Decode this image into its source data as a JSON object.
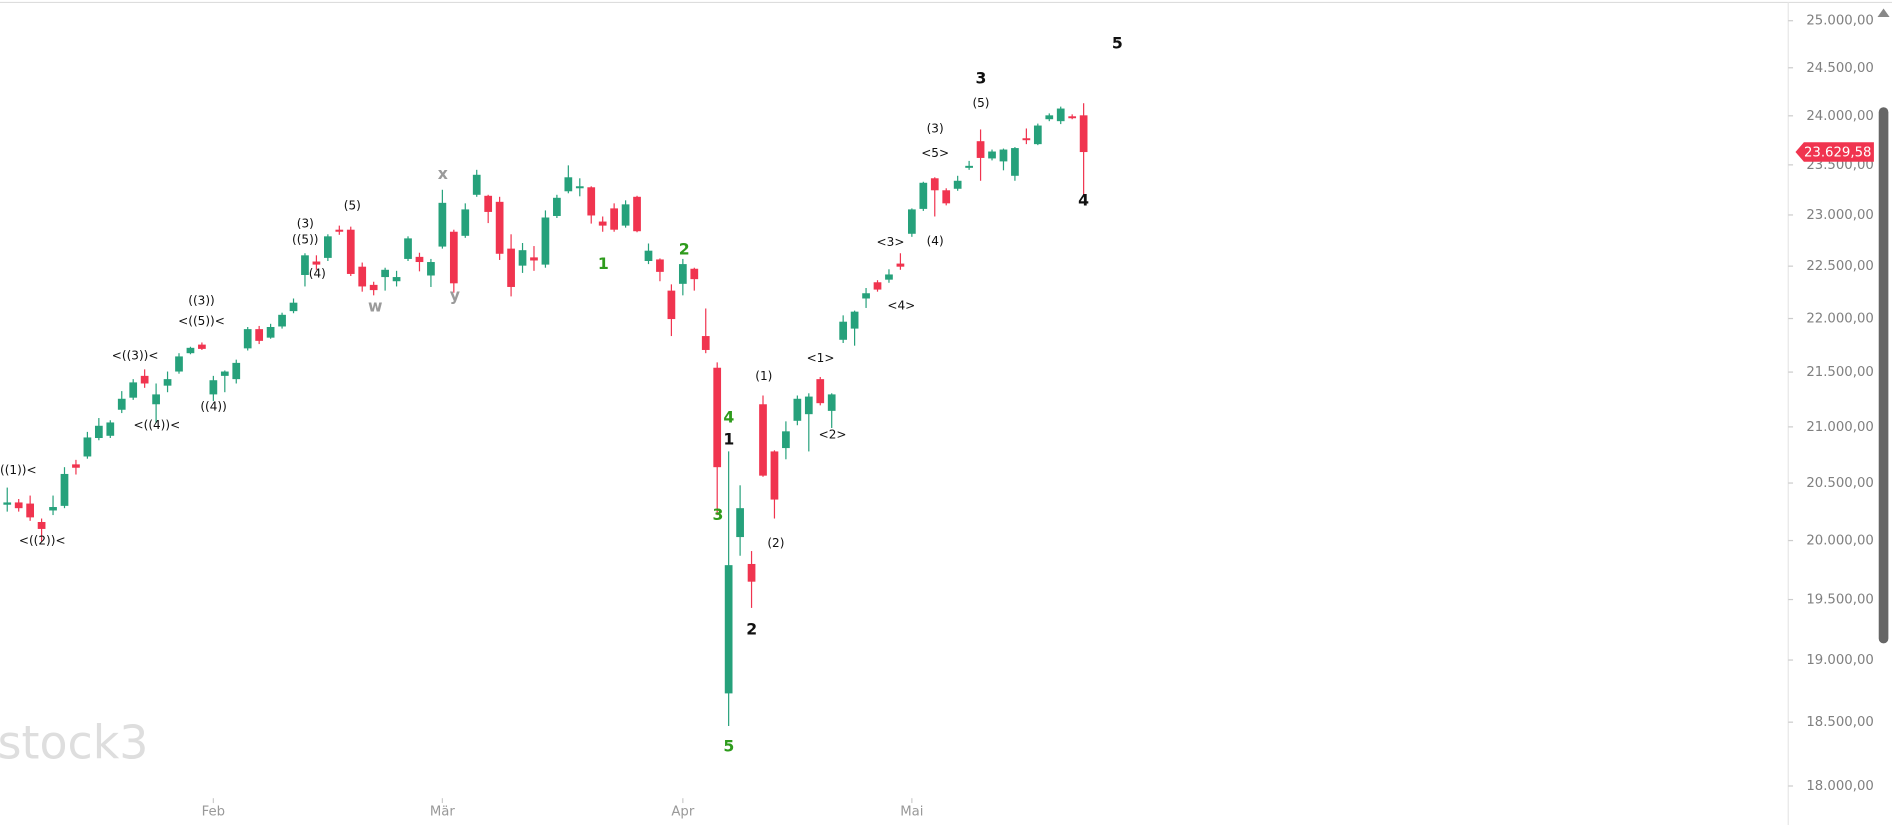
{
  "chart_data": {
    "type": "candlestick",
    "watermark": "stock3",
    "log_scale": true,
    "up_color": "#26a17b",
    "down_color": "#f0344f",
    "categories": [
      null,
      null,
      null,
      null,
      null,
      null,
      null,
      null,
      null,
      null,
      null,
      null,
      null,
      null,
      null,
      null,
      null,
      null,
      "Feb",
      null,
      null,
      null,
      null,
      null,
      null,
      null,
      null,
      null,
      null,
      null,
      null,
      null,
      null,
      null,
      null,
      null,
      null,
      null,
      "Mär",
      null,
      null,
      null,
      null,
      null,
      null,
      null,
      null,
      null,
      null,
      null,
      null,
      null,
      null,
      null,
      null,
      null,
      null,
      null,
      null,
      "Apr",
      null,
      null,
      null,
      null,
      null,
      null,
      null,
      null,
      null,
      null,
      null,
      null,
      null,
      null,
      null,
      null,
      null,
      null,
      null,
      "Mai",
      null,
      null,
      null,
      null,
      null,
      null,
      null,
      null,
      null,
      null,
      null,
      null,
      null,
      null,
      null
    ],
    "open": [
      20310,
      20330,
      20320,
      20160,
      20260,
      20300,
      20665,
      20735,
      20900,
      20920,
      21155,
      21265,
      21465,
      21205,
      21375,
      21505,
      21675,
      21755,
      21295,
      21465,
      21435,
      21720,
      21900,
      21820,
      21925,
      22070,
      22415,
      22545,
      22580,
      22855,
      22855,
      22495,
      22320,
      22395,
      22355,
      22570,
      22590,
      22410,
      22690,
      22835,
      22795,
      23200,
      23190,
      23130,
      22670,
      22505,
      22585,
      22515,
      22990,
      23235,
      23265,
      23275,
      22935,
      23065,
      22895,
      23180,
      22550,
      22565,
      22265,
      22330,
      22475,
      21835,
      21540,
      18730,
      20030,
      19800,
      21205,
      20780,
      20810,
      21055,
      21115,
      21435,
      21145,
      21800,
      21905,
      22190,
      22345,
      22370,
      22525,
      22815,
      23060,
      23365,
      23245,
      23260,
      23470,
      23740,
      23565,
      23535,
      23390,
      23770,
      23710,
      23965,
      23945,
      23995,
      24005
    ],
    "high": [
      20460,
      20360,
      20390,
      20190,
      20390,
      20640,
      20705,
      20955,
      21080,
      21060,
      21325,
      21435,
      21525,
      21395,
      21505,
      21675,
      21735,
      21775,
      21465,
      21515,
      21615,
      21920,
      21930,
      21950,
      22055,
      22190,
      22625,
      22605,
      22810,
      22895,
      22885,
      22535,
      22350,
      22485,
      22455,
      22790,
      22630,
      22570,
      23250,
      22855,
      23115,
      23450,
      23200,
      23180,
      22810,
      22725,
      22695,
      23045,
      23200,
      23495,
      23365,
      23285,
      22985,
      23115,
      23145,
      23190,
      22720,
      22575,
      22325,
      22570,
      22485,
      22095,
      21590,
      20780,
      20480,
      19910,
      21285,
      20790,
      21050,
      21285,
      21305,
      21455,
      21305,
      22030,
      22075,
      22290,
      22365,
      22470,
      22625,
      23065,
      23330,
      23375,
      23265,
      23390,
      23540,
      23860,
      23655,
      23665,
      23680,
      23870,
      23920,
      24025,
      24095,
      24015,
      24130
    ],
    "low": [
      20250,
      20250,
      20170,
      19990,
      20220,
      20280,
      20575,
      20715,
      20880,
      20900,
      21125,
      21245,
      21355,
      21035,
      21315,
      21485,
      21665,
      21705,
      21235,
      21315,
      21395,
      21700,
      21760,
      21810,
      21905,
      22050,
      22305,
      22465,
      22550,
      22805,
      22405,
      22255,
      22220,
      22265,
      22305,
      22550,
      22450,
      22300,
      22670,
      22245,
      22775,
      23180,
      22920,
      22560,
      22210,
      22435,
      22455,
      22485,
      22970,
      23215,
      23185,
      22915,
      22835,
      22835,
      22875,
      22830,
      22520,
      22355,
      21835,
      22220,
      22265,
      21675,
      20220,
      18470,
      19870,
      19430,
      20555,
      20190,
      20710,
      21015,
      20780,
      21195,
      20990,
      21770,
      21745,
      22100,
      22255,
      22340,
      22465,
      22785,
      23040,
      22985,
      23095,
      23240,
      23450,
      23340,
      23545,
      23445,
      23340,
      23710,
      23700,
      23945,
      23915,
      23965,
      23200
    ],
    "close": [
      20330,
      20280,
      20200,
      20100,
      20290,
      20580,
      20635,
      20905,
      21010,
      21040,
      21255,
      21405,
      21395,
      21295,
      21435,
      21645,
      21725,
      21715,
      21425,
      21505,
      21585,
      21900,
      21790,
      21920,
      22035,
      22150,
      22605,
      22515,
      22790,
      22835,
      22425,
      22305,
      22270,
      22465,
      22395,
      22770,
      22540,
      22540,
      23120,
      22335,
      23055,
      23400,
      23030,
      22620,
      22300,
      22655,
      22555,
      22975,
      23170,
      23375,
      23285,
      22995,
      22895,
      22855,
      23105,
      22840,
      22650,
      22445,
      21995,
      22520,
      22375,
      21705,
      20640,
      19790,
      20280,
      19650,
      20565,
      20355,
      20960,
      21255,
      21275,
      21215,
      21295,
      21970,
      22065,
      22240,
      22275,
      22420,
      22495,
      23055,
      23320,
      23245,
      23115,
      23340,
      23490,
      23570,
      23635,
      23655,
      23670,
      23750,
      23900,
      24005,
      24075,
      23975,
      23629.58
    ],
    "last_price_label": "23.629,58",
    "ylim": [
      18000,
      25000
    ],
    "yticks": [
      {
        "value": 18000,
        "label": "18.000,00"
      },
      {
        "value": 18500,
        "label": "18.500,00"
      },
      {
        "value": 19000,
        "label": "19.000,00"
      },
      {
        "value": 19500,
        "label": "19.500,00"
      },
      {
        "value": 20000,
        "label": "20.000,00"
      },
      {
        "value": 20500,
        "label": "20.500,00"
      },
      {
        "value": 21000,
        "label": "21.000,00"
      },
      {
        "value": 21500,
        "label": "21.500,00"
      },
      {
        "value": 22000,
        "label": "22.000,00"
      },
      {
        "value": 22500,
        "label": "22.500,00"
      },
      {
        "value": 23000,
        "label": "23.000,00"
      },
      {
        "value": 23500,
        "label": "23.500,00"
      },
      {
        "value": 24000,
        "label": "24.000,00"
      },
      {
        "value": 24500,
        "label": "24.500,00"
      },
      {
        "value": 25000,
        "label": "25.000,00"
      }
    ],
    "annotations": [
      {
        "text": "((1))<",
        "color": "#111111"
      },
      {
        "text": "<((2))<",
        "color": "#111111"
      },
      {
        "text": "<((3))<",
        "color": "#111111"
      },
      {
        "text": "<((4))<",
        "color": "#111111"
      },
      {
        "text": "((3))",
        "color": "#111111"
      },
      {
        "text": "<((5))<",
        "color": "#111111"
      },
      {
        "text": "((4))",
        "color": "#111111"
      },
      {
        "text": "(3)",
        "color": "#111111"
      },
      {
        "text": "((5))",
        "color": "#111111"
      },
      {
        "text": "(4)",
        "color": "#111111"
      },
      {
        "text": "(5)",
        "color": "#111111"
      },
      {
        "text": "w",
        "color": "#9a9a9a"
      },
      {
        "text": "x",
        "color": "#9a9a9a"
      },
      {
        "text": "y",
        "color": "#9a9a9a"
      },
      {
        "text": "1",
        "color": "#2e9b1c"
      },
      {
        "text": "2",
        "color": "#2e9b1c"
      },
      {
        "text": "4",
        "color": "#2e9b1c"
      },
      {
        "text": "3",
        "color": "#2e9b1c"
      },
      {
        "text": "5",
        "color": "#2e9b1c"
      },
      {
        "text": "1",
        "color": "#111111"
      },
      {
        "text": "2",
        "color": "#111111"
      },
      {
        "text": "(1)",
        "color": "#111111"
      },
      {
        "text": "(2)",
        "color": "#111111"
      },
      {
        "text": "<1>",
        "color": "#111111"
      },
      {
        "text": "<2>",
        "color": "#111111"
      },
      {
        "text": "<3>",
        "color": "#111111"
      },
      {
        "text": "<4>",
        "color": "#111111"
      },
      {
        "text": "(4)",
        "color": "#111111"
      },
      {
        "text": "<5>",
        "color": "#111111"
      },
      {
        "text": "(3)",
        "color": "#111111"
      },
      {
        "text": "3",
        "color": "#111111"
      },
      {
        "text": "(5)",
        "color": "#111111"
      },
      {
        "text": "4",
        "color": "#111111"
      },
      {
        "text": "5",
        "color": "#111111"
      }
    ]
  }
}
